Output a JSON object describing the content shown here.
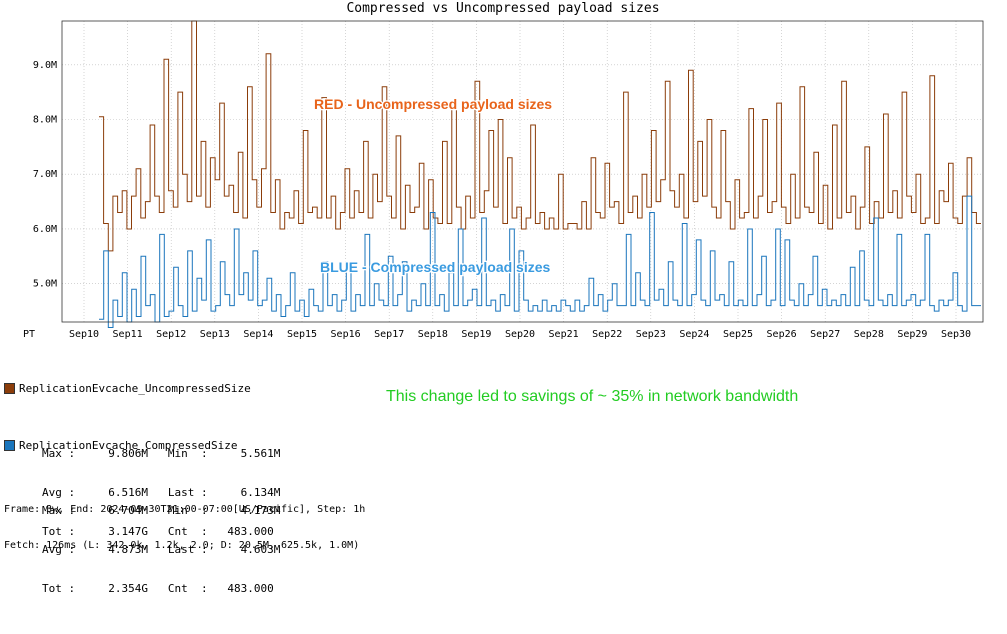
{
  "chart_data": {
    "type": "line",
    "title": "Compressed vs Uncompressed payload sizes",
    "timezone_label": "PT",
    "x_tick_labels": [
      "Sep10",
      "Sep11",
      "Sep12",
      "Sep13",
      "Sep14",
      "Sep15",
      "Sep16",
      "Sep17",
      "Sep18",
      "Sep19",
      "Sep20",
      "Sep21",
      "Sep22",
      "Sep23",
      "Sep24",
      "Sep25",
      "Sep26",
      "Sep27",
      "Sep28",
      "Sep29",
      "Sep30"
    ],
    "y_tick_labels": [
      "9.0M",
      "8.0M",
      "7.0M",
      "6.0M",
      "5.0M"
    ],
    "y_ticks": [
      9000000,
      8000000,
      7000000,
      6000000,
      5000000
    ],
    "ylim": [
      4300000,
      9800000
    ],
    "grid": true,
    "series": [
      {
        "name": "ReplicationEvcache_UncompressedSize",
        "color": "#8b3d0a",
        "values": [
          8.05,
          6.1,
          5.6,
          6.6,
          6.3,
          6.7,
          6.0,
          6.6,
          7.1,
          6.2,
          6.5,
          7.9,
          6.6,
          6.3,
          9.1,
          6.7,
          6.4,
          8.5,
          7.0,
          6.5,
          9.8,
          6.6,
          7.6,
          6.4,
          7.3,
          6.9,
          8.3,
          6.6,
          6.8,
          6.3,
          7.4,
          6.2,
          8.6,
          6.9,
          6.4,
          7.1,
          9.2,
          6.3,
          6.9,
          6.0,
          6.3,
          6.2,
          6.7,
          6.1,
          7.8,
          6.3,
          6.4,
          6.2,
          8.4,
          6.2,
          6.6,
          6.0,
          6.3,
          7.1,
          6.2,
          6.7,
          6.3,
          7.6,
          6.2,
          7.0,
          6.5,
          8.6,
          6.6,
          6.2,
          7.7,
          6.0,
          6.8,
          6.3,
          6.4,
          7.2,
          6.0,
          6.9,
          6.2,
          6.1,
          7.6,
          6.1,
          8.3,
          6.4,
          6.0,
          6.6,
          6.2,
          8.7,
          6.3,
          6.7,
          7.8,
          6.4,
          8.0,
          6.1,
          7.3,
          6.2,
          6.4,
          6.0,
          6.2,
          7.9,
          6.1,
          6.3,
          6.0,
          6.2,
          6.0,
          7.0,
          6.0,
          6.1,
          6.1,
          6.0,
          6.5,
          6.0,
          7.3,
          6.3,
          6.2,
          7.2,
          6.4,
          6.5,
          6.1,
          8.5,
          6.3,
          6.6,
          6.2,
          7.0,
          6.4,
          7.8,
          6.5,
          6.9,
          8.7,
          6.7,
          6.4,
          7.0,
          6.2,
          8.9,
          6.5,
          7.6,
          6.6,
          8.0,
          6.4,
          6.2,
          7.8,
          6.5,
          6.0,
          6.9,
          6.2,
          6.3,
          8.2,
          6.2,
          6.6,
          8.0,
          6.3,
          6.5,
          8.3,
          6.4,
          6.1,
          7.0,
          6.2,
          8.6,
          6.4,
          6.3,
          7.4,
          6.1,
          6.8,
          6.0,
          7.9,
          6.2,
          8.7,
          6.3,
          6.6,
          6.0,
          6.4,
          7.5,
          6.1,
          6.5,
          6.2,
          8.1,
          6.3,
          6.7,
          6.2,
          8.5,
          6.6,
          6.3,
          7.0,
          6.1,
          6.2,
          8.8,
          6.1,
          6.7,
          6.5,
          7.2,
          6.2,
          6.1,
          6.6,
          7.3,
          6.3,
          6.1
        ]
      },
      {
        "name": "ReplicationEvcache_CompressedSize",
        "color": "#1a75bc",
        "values": [
          4.35,
          5.6,
          4.2,
          4.7,
          4.4,
          5.2,
          4.3,
          4.9,
          4.4,
          5.5,
          4.6,
          4.8,
          4.3,
          5.9,
          4.4,
          4.5,
          5.3,
          4.6,
          4.4,
          5.6,
          4.5,
          5.1,
          4.7,
          5.8,
          4.5,
          4.6,
          5.4,
          4.8,
          4.6,
          6.0,
          4.8,
          5.2,
          4.7,
          5.6,
          4.6,
          4.7,
          5.1,
          4.5,
          4.8,
          4.4,
          4.6,
          5.2,
          4.5,
          4.7,
          4.4,
          4.9,
          4.6,
          4.5,
          5.4,
          4.6,
          4.8,
          4.5,
          4.7,
          5.3,
          4.5,
          4.8,
          4.6,
          5.9,
          4.6,
          5.0,
          4.7,
          4.6,
          5.5,
          4.6,
          4.8,
          5.4,
          4.5,
          4.7,
          4.6,
          5.0,
          4.6,
          6.3,
          4.6,
          4.8,
          4.5,
          5.2,
          4.6,
          6.0,
          4.6,
          4.7,
          4.9,
          4.6,
          6.2,
          4.6,
          4.7,
          4.5,
          4.8,
          4.6,
          6.0,
          4.5,
          5.6,
          4.7,
          4.5,
          4.6,
          4.5,
          4.7,
          4.5,
          4.6,
          4.5,
          4.7,
          4.6,
          4.5,
          4.7,
          4.5,
          4.6,
          5.1,
          4.6,
          4.8,
          4.5,
          4.7,
          5.0,
          4.6,
          4.6,
          5.9,
          4.6,
          5.2,
          4.7,
          4.6,
          6.3,
          4.7,
          4.9,
          4.6,
          5.4,
          4.7,
          4.6,
          6.1,
          4.6,
          4.8,
          5.8,
          4.7,
          4.6,
          5.6,
          4.7,
          4.8,
          4.6,
          5.4,
          4.6,
          4.7,
          4.6,
          6.0,
          4.6,
          4.8,
          5.5,
          4.6,
          4.7,
          6.0,
          4.6,
          5.8,
          4.7,
          4.6,
          5.0,
          4.6,
          4.8,
          5.5,
          4.6,
          4.9,
          4.6,
          4.7,
          4.6,
          4.8,
          4.6,
          5.3,
          4.6,
          5.6,
          4.7,
          4.6,
          6.2,
          4.7,
          4.6,
          4.8,
          4.6,
          5.9,
          4.6,
          4.7,
          4.8,
          4.6,
          4.7,
          5.9,
          4.6,
          4.5,
          4.7,
          4.6,
          4.7,
          5.2,
          4.6,
          4.5,
          6.6,
          4.6,
          4.6
        ]
      }
    ],
    "annotations": [
      {
        "text": "RED - Uncompressed payload sizes",
        "color": "#e8641b"
      },
      {
        "text": "BLUE - Compressed payload sizes",
        "color": "#3a9be0"
      }
    ]
  },
  "legend": [
    {
      "name": "ReplicationEvcache_UncompressedSize",
      "color": "#8b3d0a",
      "lines": [
        "Max :     9.806M   Min  :     5.561M",
        "Avg :     6.516M   Last :     6.134M",
        "Tot :     3.147G   Cnt  :   483.000"
      ]
    },
    {
      "name": "ReplicationEvcache_CompressedSize",
      "color": "#1a75bc",
      "lines": [
        "Max :     6.704M   Min  :     4.173M",
        "Avg :     4.873M   Last :     4.603M",
        "Tot :     2.354G   Cnt  :   483.000"
      ]
    }
  ],
  "savings_note": "This change led to savings of ~ 35% in network bandwidth",
  "footer": {
    "frame": "Frame: 3w, End: 2024-09-30T21:00-07:00[US/Pacific], Step: 1h",
    "fetch": "Fetch: 126ms (L: 342.0k, 1.2k, 2.0; D: 20.5M, 625.5k, 1.0M)"
  }
}
